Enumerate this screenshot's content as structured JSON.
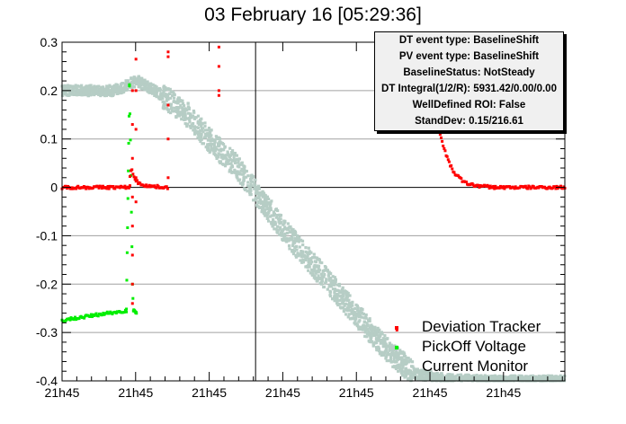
{
  "chart_data": {
    "type": "scatter",
    "title": "03 February 16 [05:29:36]",
    "xlabel": "",
    "ylabel": "",
    "ylim": [
      -0.4,
      0.3
    ],
    "y_ticks": [
      -0.4,
      -0.3,
      -0.2,
      -0.1,
      0,
      0.1,
      0.2,
      0.3
    ],
    "y_tick_labels": [
      "-0.4",
      "-0.3",
      "-0.2",
      "-0.1",
      "0",
      "0.1",
      "0.2",
      "0.3"
    ],
    "x_tick_labels": [
      "21h45",
      "21h45",
      "21h45",
      "21h45",
      "21h45",
      "21h45",
      "21h45"
    ],
    "xlim": [
      0,
      1
    ],
    "x_ticks": [
      0,
      0.1463,
      0.2927,
      0.439,
      0.5854,
      0.7317,
      0.878
    ],
    "cursor_x": 0.3849,
    "grid": true,
    "legend_position": "bottom-right",
    "series": [
      {
        "name": "Deviation Tracker",
        "color": "#ff0000",
        "segments": [
          {
            "x": [
              0.0,
              0.05,
              0.1,
              0.13,
              0.135
            ],
            "y": [
              0.0,
              0.0,
              0.0,
              0.0,
              0.002
            ]
          },
          {
            "x": [
              0.135,
              0.138,
              0.141,
              0.146,
              0.153,
              0.162,
              0.178,
              0.21
            ],
            "y": [
              0.02,
              0.04,
              0.03,
              0.015,
              0.008,
              0.005,
              0.002,
              0.0
            ]
          },
          {
            "x": [
              0.74,
              0.75,
              0.76,
              0.77,
              0.78,
              0.79,
              0.8,
              0.82,
              0.86,
              0.92,
              1.0
            ],
            "y": [
              0.17,
              0.12,
              0.08,
              0.05,
              0.03,
              0.02,
              0.01,
              0.004,
              0.0,
              0.0,
              0.0
            ]
          }
        ],
        "points": [
          {
            "x": [
              0.14,
              0.14,
              0.14,
              0.14,
              0.14,
              0.14,
              0.14,
              0.14
            ],
            "y": [
              0.2,
              0.13,
              0.06,
              -0.02,
              -0.08,
              -0.14,
              -0.2,
              -0.24
            ]
          },
          {
            "x": [
              0.147,
              0.147,
              0.147,
              0.147,
              0.147
            ],
            "y": [
              0.265,
              0.2,
              0.12,
              0.02,
              -0.03
            ]
          },
          {
            "x": [
              0.211,
              0.211,
              0.211,
              0.211,
              0.211
            ],
            "y": [
              0.28,
              0.27,
              0.17,
              0.1,
              0.02
            ]
          },
          {
            "x": [
              0.312,
              0.312,
              0.312,
              0.312
            ],
            "y": [
              0.29,
              0.25,
              0.2,
              0.19
            ]
          },
          {
            "x": [
              0.666
            ],
            "y": [
              -0.295
            ]
          }
        ]
      },
      {
        "name": "PickOff Voltage",
        "color": "#00ee00",
        "segments": [
          {
            "x": [
              0.0,
              0.03,
              0.06,
              0.09,
              0.11,
              0.12,
              0.128
            ],
            "y": [
              -0.275,
              -0.27,
              -0.265,
              -0.26,
              -0.258,
              -0.256,
              -0.255
            ]
          },
          {
            "x": [
              0.128,
              0.13,
              0.132,
              0.134
            ],
            "y": [
              -0.25,
              -0.1,
              0.05,
              0.21
            ]
          },
          {
            "x": [
              0.134,
              0.136,
              0.138,
              0.14,
              0.142
            ],
            "y": [
              0.21,
              0.1,
              -0.05,
              -0.2,
              -0.255
            ]
          },
          {
            "x": [
              0.142,
              0.145,
              0.148
            ],
            "y": [
              -0.255,
              -0.258,
              -0.26
            ]
          }
        ],
        "points": [
          {
            "x": [
              0.666
            ],
            "y": [
              -0.33
            ]
          }
        ]
      },
      {
        "name": "Current Monitor",
        "color": "#b6cdc5",
        "x": [
          0.0,
          0.05,
          0.1,
          0.12,
          0.135,
          0.15,
          0.2,
          0.25,
          0.3,
          0.35,
          0.4,
          0.45,
          0.5,
          0.55,
          0.6,
          0.65,
          0.7,
          0.75,
          0.8,
          0.85,
          0.9,
          0.95,
          1.0
        ],
        "y": [
          0.2,
          0.2,
          0.2,
          0.205,
          0.215,
          0.22,
          0.19,
          0.15,
          0.09,
          0.04,
          -0.03,
          -0.1,
          -0.16,
          -0.22,
          -0.28,
          -0.34,
          -0.385,
          -0.395,
          -0.398,
          -0.4,
          -0.4,
          -0.4,
          -0.4
        ],
        "spread": 0.018
      }
    ]
  },
  "info_box": {
    "lines": [
      "DT event type: BaselineShift",
      "PV event type: BaselineShift",
      "BaselineStatus: NotSteady",
      "DT Integral(1/2/R): 5931.42/0.00/0.00",
      "WellDefined ROI: False",
      "StandDev: 0.15/216.61"
    ]
  }
}
